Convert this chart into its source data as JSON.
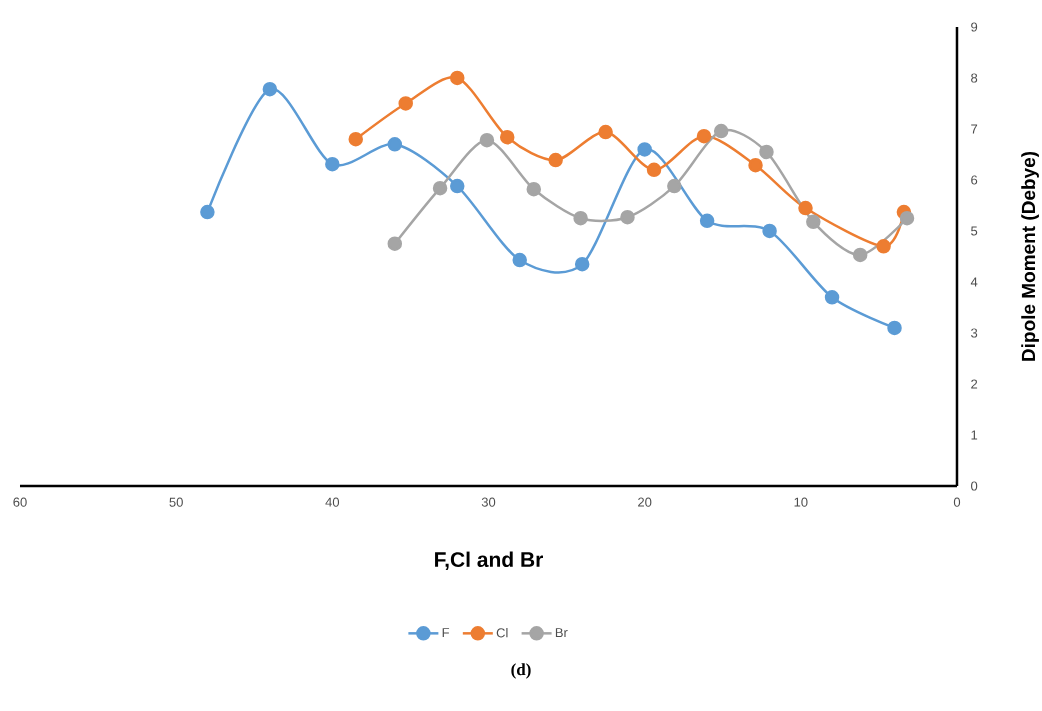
{
  "chart_data": {
    "type": "line",
    "xlabel": "F,Cl and Br",
    "ylabel": "Dipole  Moment (Debye)",
    "annotations": [
      "(d)"
    ],
    "xlim": [
      60,
      0
    ],
    "xticks": [
      60,
      50,
      40,
      30,
      20,
      10,
      0
    ],
    "ylim": [
      0,
      9
    ],
    "yticks": [
      0,
      1,
      2,
      3,
      4,
      5,
      6,
      7,
      8,
      9
    ],
    "grid": false,
    "legend": "bottom",
    "marker": "circle",
    "line_style": "solid",
    "series": [
      {
        "name": "F",
        "color": "#5b9bd5",
        "x": [
          48,
          44,
          40,
          36,
          32,
          28,
          24,
          20,
          16,
          12,
          8,
          4
        ],
        "values": [
          5.37,
          7.78,
          6.31,
          6.7,
          5.88,
          4.43,
          4.35,
          6.6,
          5.2,
          5.0,
          3.7,
          3.1
        ]
      },
      {
        "name": "Cl",
        "color": "#ed7d31",
        "x": [
          38.5,
          35.3,
          32,
          28.8,
          25.7,
          22.5,
          19.4,
          16.2,
          12.9,
          9.7,
          4.7,
          3.4
        ],
        "values": [
          6.8,
          7.5,
          8.0,
          6.84,
          6.39,
          6.94,
          6.2,
          6.86,
          6.29,
          5.45,
          4.7,
          5.37
        ]
      },
      {
        "name": "Br",
        "color": "#a5a5a5",
        "x": [
          36,
          33.1,
          30.1,
          27.1,
          24.1,
          21.1,
          18.1,
          15.1,
          12.2,
          9.2,
          6.2,
          3.2
        ],
        "values": [
          4.75,
          5.84,
          6.78,
          5.82,
          5.25,
          5.27,
          5.88,
          6.96,
          6.55,
          5.18,
          4.53,
          5.25
        ]
      }
    ]
  }
}
